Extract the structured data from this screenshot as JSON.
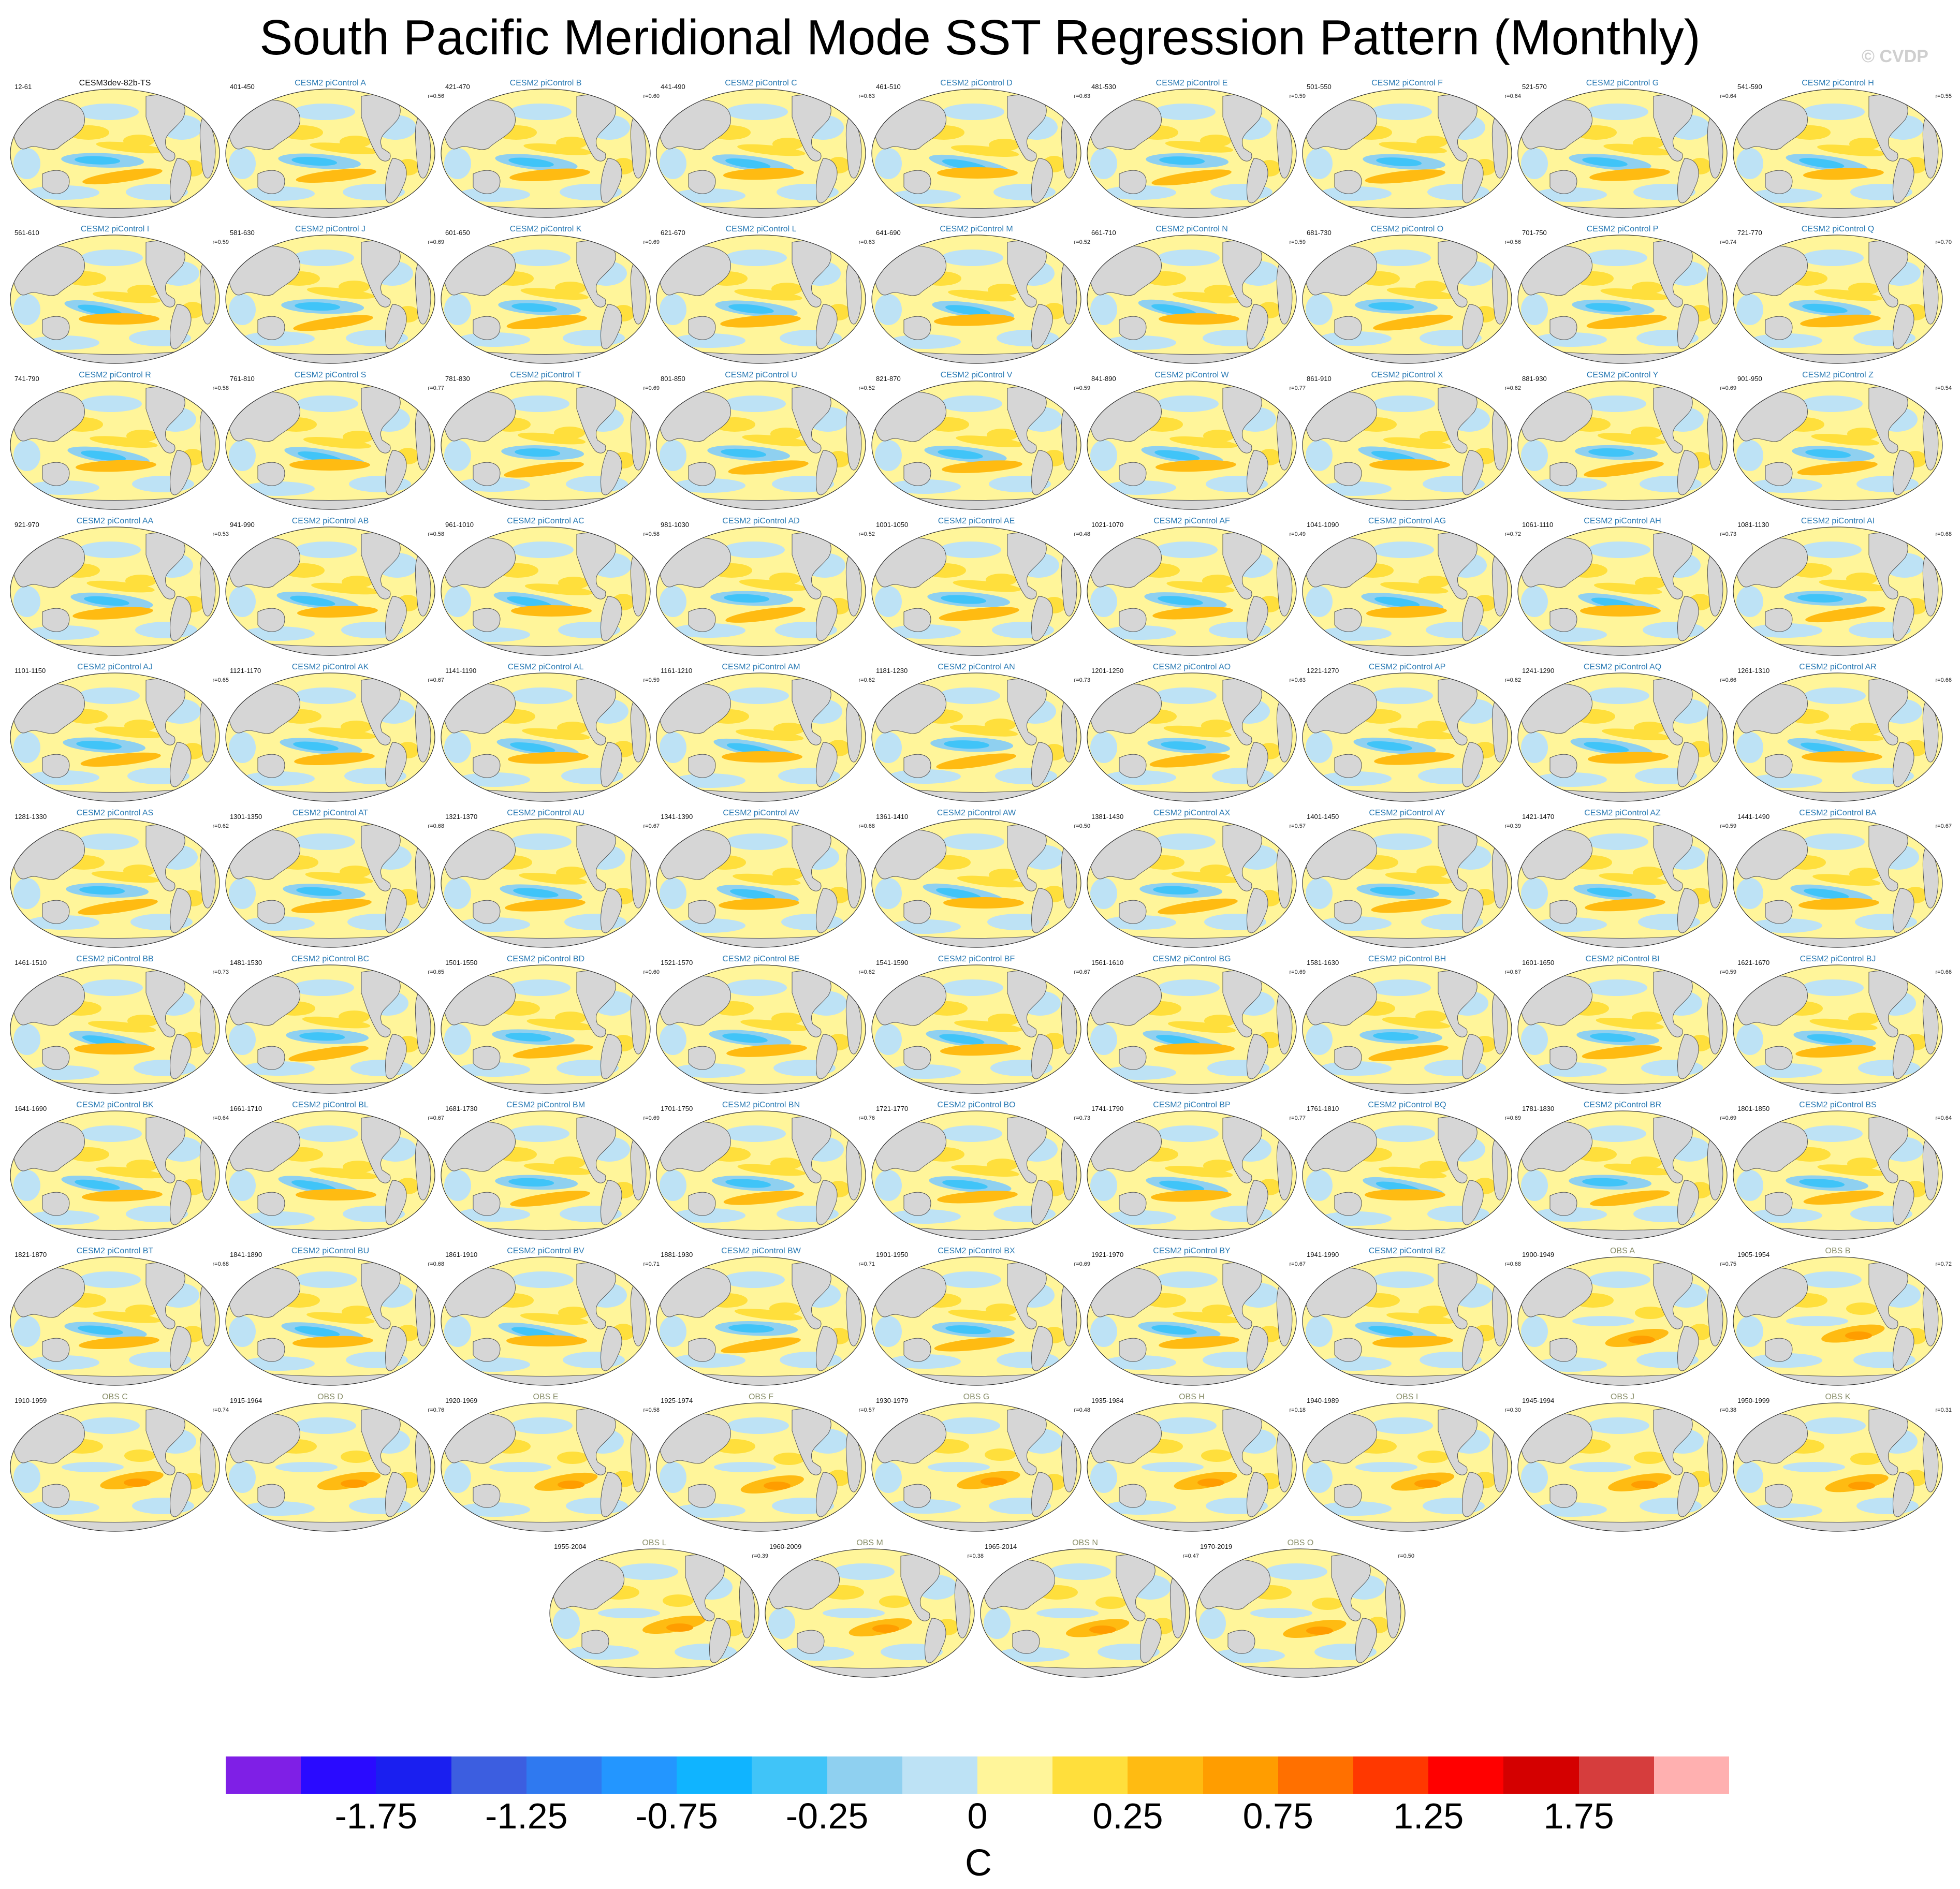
{
  "title": "South Pacific Meridional Mode SST Regression Pattern (Monthly)",
  "watermark": "© CVDP",
  "units": "C",
  "colorbar": {
    "colors": [
      "#7f1fe6",
      "#2a0aff",
      "#1a1ff0",
      "#3c5ee0",
      "#2f79f0",
      "#2396ff",
      "#10b4ff",
      "#40c4f8",
      "#8fd0f0",
      "#bde2f5",
      "#fff59a",
      "#ffdf3c",
      "#ffbb12",
      "#ff9d00",
      "#ff7000",
      "#ff3800",
      "#ff0000",
      "#d40000",
      "#d63d3d",
      "#ffb0b0"
    ],
    "labels": [
      "-1.75",
      "-1.25",
      "-0.75",
      "-0.25",
      "0",
      "0.25",
      "0.75",
      "1.25",
      "1.75"
    ]
  },
  "panels": [
    {
      "name": "CESM3dev-82b-TS",
      "period": "12-61",
      "r": "",
      "kind": "sim"
    },
    {
      "name": "CESM2 piControl A",
      "period": "401-450",
      "r": "r=0.56",
      "kind": "ctl"
    },
    {
      "name": "CESM2 piControl B",
      "period": "421-470",
      "r": "r=0.60",
      "kind": "ctl"
    },
    {
      "name": "CESM2 piControl C",
      "period": "441-490",
      "r": "r=0.63",
      "kind": "ctl"
    },
    {
      "name": "CESM2 piControl D",
      "period": "461-510",
      "r": "r=0.63",
      "kind": "ctl"
    },
    {
      "name": "CESM2 piControl E",
      "period": "481-530",
      "r": "r=0.59",
      "kind": "ctl"
    },
    {
      "name": "CESM2 piControl F",
      "period": "501-550",
      "r": "r=0.64",
      "kind": "ctl"
    },
    {
      "name": "CESM2 piControl G",
      "period": "521-570",
      "r": "r=0.64",
      "kind": "ctl"
    },
    {
      "name": "CESM2 piControl H",
      "period": "541-590",
      "r": "r=0.55",
      "kind": "ctl"
    },
    {
      "name": "CESM2 piControl I",
      "period": "561-610",
      "r": "r=0.59",
      "kind": "ctl"
    },
    {
      "name": "CESM2 piControl J",
      "period": "581-630",
      "r": "r=0.69",
      "kind": "ctl"
    },
    {
      "name": "CESM2 piControl K",
      "period": "601-650",
      "r": "r=0.69",
      "kind": "ctl"
    },
    {
      "name": "CESM2 piControl L",
      "period": "621-670",
      "r": "r=0.63",
      "kind": "ctl"
    },
    {
      "name": "CESM2 piControl M",
      "period": "641-690",
      "r": "r=0.52",
      "kind": "ctl"
    },
    {
      "name": "CESM2 piControl N",
      "period": "661-710",
      "r": "r=0.59",
      "kind": "ctl"
    },
    {
      "name": "CESM2 piControl O",
      "period": "681-730",
      "r": "r=0.56",
      "kind": "ctl"
    },
    {
      "name": "CESM2 piControl P",
      "period": "701-750",
      "r": "r=0.74",
      "kind": "ctl"
    },
    {
      "name": "CESM2 piControl Q",
      "period": "721-770",
      "r": "r=0.70",
      "kind": "ctl"
    },
    {
      "name": "CESM2 piControl R",
      "period": "741-790",
      "r": "r=0.58",
      "kind": "ctl"
    },
    {
      "name": "CESM2 piControl S",
      "period": "761-810",
      "r": "r=0.77",
      "kind": "ctl"
    },
    {
      "name": "CESM2 piControl T",
      "period": "781-830",
      "r": "r=0.69",
      "kind": "ctl"
    },
    {
      "name": "CESM2 piControl U",
      "period": "801-850",
      "r": "r=0.52",
      "kind": "ctl"
    },
    {
      "name": "CESM2 piControl V",
      "period": "821-870",
      "r": "r=0.59",
      "kind": "ctl"
    },
    {
      "name": "CESM2 piControl W",
      "period": "841-890",
      "r": "r=0.77",
      "kind": "ctl"
    },
    {
      "name": "CESM2 piControl X",
      "period": "861-910",
      "r": "r=0.62",
      "kind": "ctl"
    },
    {
      "name": "CESM2 piControl Y",
      "period": "881-930",
      "r": "r=0.69",
      "kind": "ctl"
    },
    {
      "name": "CESM2 piControl Z",
      "period": "901-950",
      "r": "r=0.54",
      "kind": "ctl"
    },
    {
      "name": "CESM2 piControl AA",
      "period": "921-970",
      "r": "r=0.53",
      "kind": "ctl"
    },
    {
      "name": "CESM2 piControl AB",
      "period": "941-990",
      "r": "r=0.58",
      "kind": "ctl"
    },
    {
      "name": "CESM2 piControl AC",
      "period": "961-1010",
      "r": "r=0.58",
      "kind": "ctl"
    },
    {
      "name": "CESM2 piControl AD",
      "period": "981-1030",
      "r": "r=0.52",
      "kind": "ctl"
    },
    {
      "name": "CESM2 piControl AE",
      "period": "1001-1050",
      "r": "r=0.48",
      "kind": "ctl"
    },
    {
      "name": "CESM2 piControl AF",
      "period": "1021-1070",
      "r": "r=0.49",
      "kind": "ctl"
    },
    {
      "name": "CESM2 piControl AG",
      "period": "1041-1090",
      "r": "r=0.72",
      "kind": "ctl"
    },
    {
      "name": "CESM2 piControl AH",
      "period": "1061-1110",
      "r": "r=0.73",
      "kind": "ctl"
    },
    {
      "name": "CESM2 piControl AI",
      "period": "1081-1130",
      "r": "r=0.68",
      "kind": "ctl"
    },
    {
      "name": "CESM2 piControl AJ",
      "period": "1101-1150",
      "r": "r=0.65",
      "kind": "ctl"
    },
    {
      "name": "CESM2 piControl AK",
      "period": "1121-1170",
      "r": "r=0.67",
      "kind": "ctl"
    },
    {
      "name": "CESM2 piControl AL",
      "period": "1141-1190",
      "r": "r=0.59",
      "kind": "ctl"
    },
    {
      "name": "CESM2 piControl AM",
      "period": "1161-1210",
      "r": "r=0.62",
      "kind": "ctl"
    },
    {
      "name": "CESM2 piControl AN",
      "period": "1181-1230",
      "r": "r=0.73",
      "kind": "ctl"
    },
    {
      "name": "CESM2 piControl AO",
      "period": "1201-1250",
      "r": "r=0.63",
      "kind": "ctl"
    },
    {
      "name": "CESM2 piControl AP",
      "period": "1221-1270",
      "r": "r=0.62",
      "kind": "ctl"
    },
    {
      "name": "CESM2 piControl AQ",
      "period": "1241-1290",
      "r": "r=0.66",
      "kind": "ctl"
    },
    {
      "name": "CESM2 piControl AR",
      "period": "1261-1310",
      "r": "r=0.66",
      "kind": "ctl"
    },
    {
      "name": "CESM2 piControl AS",
      "period": "1281-1330",
      "r": "r=0.62",
      "kind": "ctl"
    },
    {
      "name": "CESM2 piControl AT",
      "period": "1301-1350",
      "r": "r=0.68",
      "kind": "ctl"
    },
    {
      "name": "CESM2 piControl AU",
      "period": "1321-1370",
      "r": "r=0.67",
      "kind": "ctl"
    },
    {
      "name": "CESM2 piControl AV",
      "period": "1341-1390",
      "r": "r=0.68",
      "kind": "ctl"
    },
    {
      "name": "CESM2 piControl AW",
      "period": "1361-1410",
      "r": "r=0.50",
      "kind": "ctl"
    },
    {
      "name": "CESM2 piControl AX",
      "period": "1381-1430",
      "r": "r=0.57",
      "kind": "ctl"
    },
    {
      "name": "CESM2 piControl AY",
      "period": "1401-1450",
      "r": "r=0.39",
      "kind": "ctl"
    },
    {
      "name": "CESM2 piControl AZ",
      "period": "1421-1470",
      "r": "r=0.59",
      "kind": "ctl"
    },
    {
      "name": "CESM2 piControl BA",
      "period": "1441-1490",
      "r": "r=0.67",
      "kind": "ctl"
    },
    {
      "name": "CESM2 piControl BB",
      "period": "1461-1510",
      "r": "r=0.73",
      "kind": "ctl"
    },
    {
      "name": "CESM2 piControl BC",
      "period": "1481-1530",
      "r": "r=0.65",
      "kind": "ctl"
    },
    {
      "name": "CESM2 piControl BD",
      "period": "1501-1550",
      "r": "r=0.60",
      "kind": "ctl"
    },
    {
      "name": "CESM2 piControl BE",
      "period": "1521-1570",
      "r": "r=0.62",
      "kind": "ctl"
    },
    {
      "name": "CESM2 piControl BF",
      "period": "1541-1590",
      "r": "r=0.67",
      "kind": "ctl"
    },
    {
      "name": "CESM2 piControl BG",
      "period": "1561-1610",
      "r": "r=0.69",
      "kind": "ctl"
    },
    {
      "name": "CESM2 piControl BH",
      "period": "1581-1630",
      "r": "r=0.67",
      "kind": "ctl"
    },
    {
      "name": "CESM2 piControl BI",
      "period": "1601-1650",
      "r": "r=0.59",
      "kind": "ctl"
    },
    {
      "name": "CESM2 piControl BJ",
      "period": "1621-1670",
      "r": "r=0.66",
      "kind": "ctl"
    },
    {
      "name": "CESM2 piControl BK",
      "period": "1641-1690",
      "r": "r=0.64",
      "kind": "ctl"
    },
    {
      "name": "CESM2 piControl BL",
      "period": "1661-1710",
      "r": "r=0.67",
      "kind": "ctl"
    },
    {
      "name": "CESM2 piControl BM",
      "period": "1681-1730",
      "r": "r=0.69",
      "kind": "ctl"
    },
    {
      "name": "CESM2 piControl BN",
      "period": "1701-1750",
      "r": "r=0.76",
      "kind": "ctl"
    },
    {
      "name": "CESM2 piControl BO",
      "period": "1721-1770",
      "r": "r=0.73",
      "kind": "ctl"
    },
    {
      "name": "CESM2 piControl BP",
      "period": "1741-1790",
      "r": "r=0.77",
      "kind": "ctl"
    },
    {
      "name": "CESM2 piControl BQ",
      "period": "1761-1810",
      "r": "r=0.69",
      "kind": "ctl"
    },
    {
      "name": "CESM2 piControl BR",
      "period": "1781-1830",
      "r": "r=0.69",
      "kind": "ctl"
    },
    {
      "name": "CESM2 piControl BS",
      "period": "1801-1850",
      "r": "r=0.64",
      "kind": "ctl"
    },
    {
      "name": "CESM2 piControl BT",
      "period": "1821-1870",
      "r": "r=0.68",
      "kind": "ctl"
    },
    {
      "name": "CESM2 piControl BU",
      "period": "1841-1890",
      "r": "r=0.68",
      "kind": "ctl"
    },
    {
      "name": "CESM2 piControl BV",
      "period": "1861-1910",
      "r": "r=0.71",
      "kind": "ctl"
    },
    {
      "name": "CESM2 piControl BW",
      "period": "1881-1930",
      "r": "r=0.71",
      "kind": "ctl"
    },
    {
      "name": "CESM2 piControl BX",
      "period": "1901-1950",
      "r": "r=0.69",
      "kind": "ctl"
    },
    {
      "name": "CESM2 piControl BY",
      "period": "1921-1970",
      "r": "r=0.67",
      "kind": "ctl"
    },
    {
      "name": "CESM2 piControl BZ",
      "period": "1941-1990",
      "r": "r=0.68",
      "kind": "ctl"
    },
    {
      "name": "OBS A",
      "period": "1900-1949",
      "r": "r=0.75",
      "kind": "obs"
    },
    {
      "name": "OBS B",
      "period": "1905-1954",
      "r": "r=0.72",
      "kind": "obs"
    },
    {
      "name": "OBS C",
      "period": "1910-1959",
      "r": "r=0.74",
      "kind": "obs"
    },
    {
      "name": "OBS D",
      "period": "1915-1964",
      "r": "r=0.76",
      "kind": "obs"
    },
    {
      "name": "OBS E",
      "period": "1920-1969",
      "r": "r=0.58",
      "kind": "obs"
    },
    {
      "name": "OBS F",
      "period": "1925-1974",
      "r": "r=0.57",
      "kind": "obs"
    },
    {
      "name": "OBS G",
      "period": "1930-1979",
      "r": "r=0.48",
      "kind": "obs"
    },
    {
      "name": "OBS H",
      "period": "1935-1984",
      "r": "r=0.18",
      "kind": "obs"
    },
    {
      "name": "OBS I",
      "period": "1940-1989",
      "r": "r=0.30",
      "kind": "obs"
    },
    {
      "name": "OBS J",
      "period": "1945-1994",
      "r": "r=0.38",
      "kind": "obs"
    },
    {
      "name": "OBS K",
      "period": "1950-1999",
      "r": "r=0.31",
      "kind": "obs"
    },
    {
      "name": "OBS L",
      "period": "1955-2004",
      "r": "r=0.39",
      "kind": "obs"
    },
    {
      "name": "OBS M",
      "period": "1960-2009",
      "r": "r=0.38",
      "kind": "obs"
    },
    {
      "name": "OBS N",
      "period": "1965-2014",
      "r": "r=0.47",
      "kind": "obs"
    },
    {
      "name": "OBS O",
      "period": "1970-2019",
      "r": "r=0.50",
      "kind": "obs"
    }
  ]
}
